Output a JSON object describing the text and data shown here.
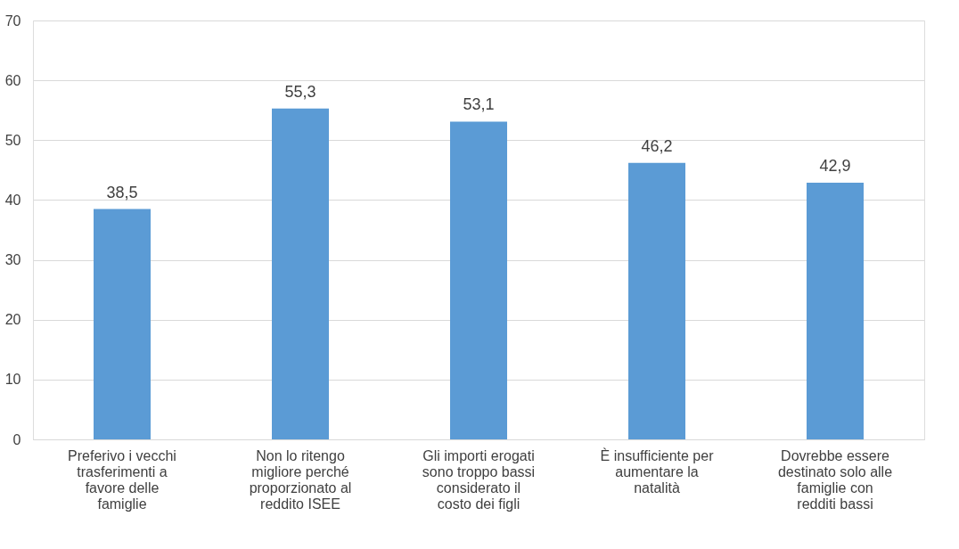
{
  "chart_data": {
    "type": "bar",
    "categories": [
      "Preferivo i vecchi trasferimenti a favore delle famiglie",
      "Non lo ritengo migliore perché proporzionato al reddito ISEE",
      "Gli importi erogati sono troppo bassi considerato il costo dei figli",
      "È insufficiente per aumentare la natalità",
      "Dovrebbe essere destinato solo alle famiglie con redditi bassi"
    ],
    "values": [
      38.5,
      55.3,
      53.1,
      46.2,
      42.9
    ],
    "value_labels": [
      "38,5",
      "55,3",
      "53,1",
      "46,2",
      "42,9"
    ],
    "color": "#5b9bd5",
    "ylim": [
      0,
      70
    ],
    "yticks": [
      0,
      10,
      20,
      30,
      40,
      50,
      60,
      70
    ],
    "grid": "y"
  }
}
